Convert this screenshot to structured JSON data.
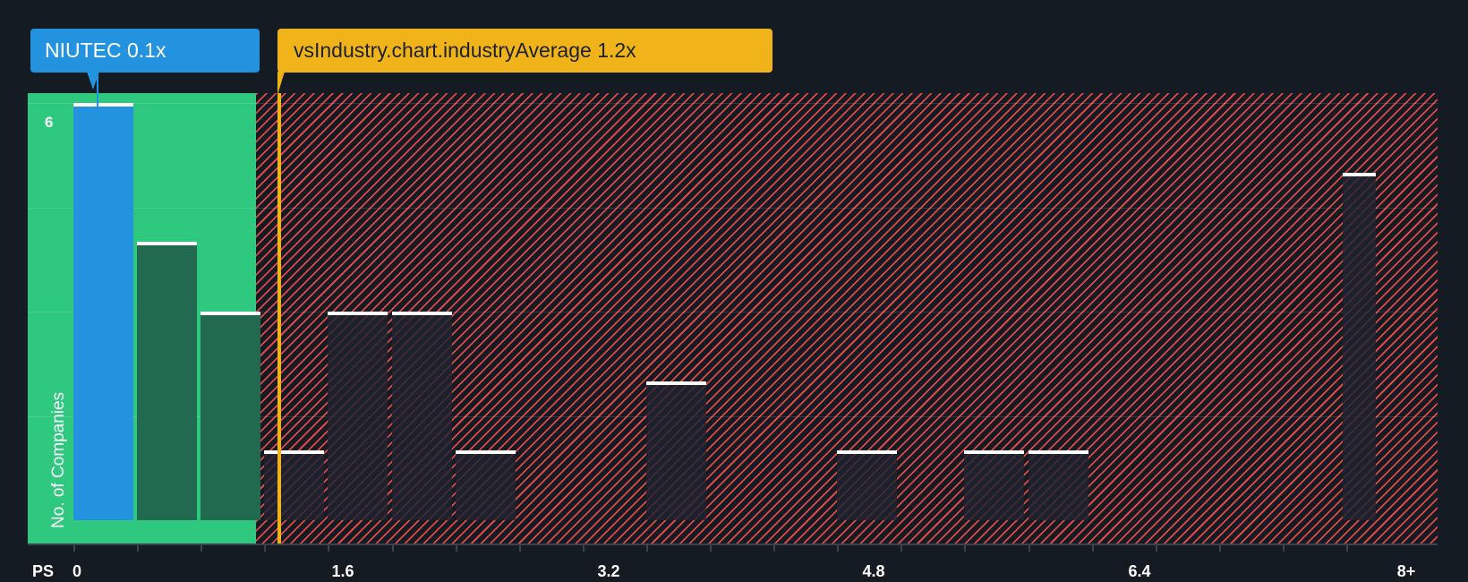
{
  "callouts": {
    "self": "NIUTEC 0.1x",
    "industry": "vsIndustry.chart.industryAverage 1.2x"
  },
  "axis": {
    "x_prefix": "PS",
    "x_ticks": [
      "0",
      "1.6",
      "3.2",
      "4.8",
      "6.4",
      "8+"
    ],
    "y_label": "No. of Companies",
    "y_max_label": "6"
  },
  "colors": {
    "self": "#2493df",
    "fair_zone": "#2ec97f",
    "over_zone": "#e04848",
    "industry_avg": "#f0b41a",
    "background": "#151b23"
  },
  "chart_data": {
    "type": "bar",
    "title": "",
    "xlabel": "PS",
    "ylabel": "No. of Companies",
    "bin_width": 0.4,
    "categories": [
      "0-0.4",
      "0.4-0.8",
      "0.8-1.2",
      "1.2-1.6",
      "1.6-2.0",
      "2.0-2.4",
      "2.4-2.8",
      "2.8-3.2",
      "3.2-3.6",
      "3.6-4.0",
      "4.0-4.4",
      "4.4-4.8",
      "4.8-5.2",
      "5.2-5.6",
      "5.6-6.0",
      "6.0-6.4",
      "6.4-6.8",
      "6.8-7.2",
      "7.2-7.6",
      "7.6-8.0",
      "8+"
    ],
    "values": [
      6,
      4,
      3,
      1,
      3,
      3,
      1,
      0,
      0,
      2,
      0,
      0,
      1,
      0,
      1,
      1,
      0,
      0,
      0,
      0,
      5
    ],
    "ylim": [
      0,
      6.2
    ],
    "yticks_visible": [
      6
    ],
    "grid": true,
    "highlight": {
      "label": "NIUTEC",
      "value": 0.1,
      "bin": 0
    },
    "industry_average": 1.2,
    "zones": {
      "fair": [
        0,
        1.2
      ],
      "expensive": [
        1.2,
        8.4
      ]
    }
  }
}
